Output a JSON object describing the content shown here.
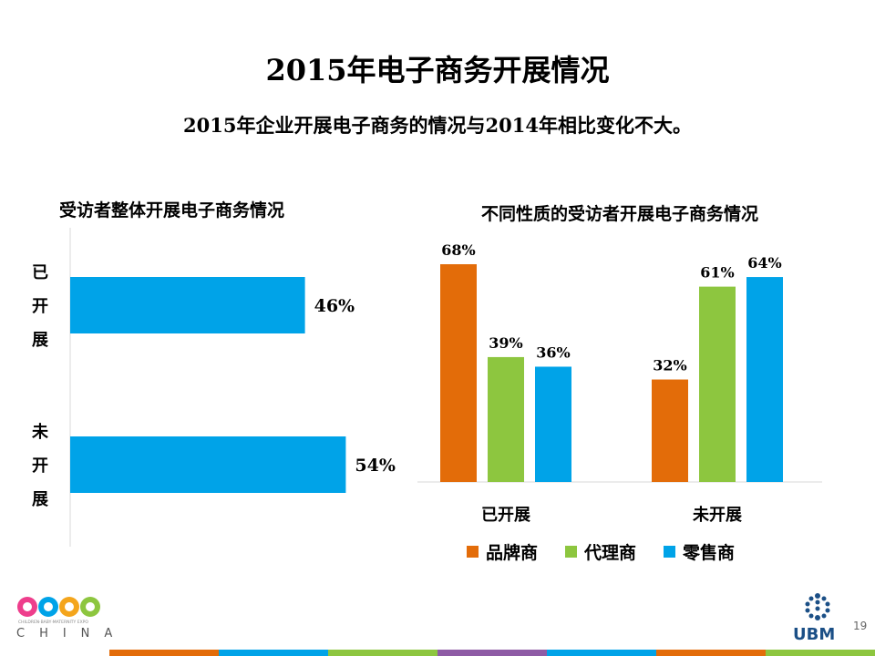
{
  "slide": {
    "title": "2015年电子商务开展情况",
    "subtitle": "2015年企业开展电子商务的情况与2014年相比变化不大。",
    "page_number": "19"
  },
  "logos": {
    "cbme_tagline": "CHILDREN·BABY·MATERNITY EXPO",
    "cbme_country": "CHINA",
    "ubm": "UBM"
  },
  "colors": {
    "orange": "#E36C09",
    "green": "#8DC63F",
    "blue": "#00A3E8"
  },
  "chart_data": [
    {
      "type": "bar",
      "orientation": "horizontal",
      "title": "受访者整体开展电子商务情况",
      "categories": [
        "已开展",
        "未开展"
      ],
      "values": [
        46,
        54
      ],
      "value_labels": [
        "46%",
        "54%"
      ],
      "xlim": [
        0,
        100
      ],
      "color": "#00A3E8",
      "grid": false
    },
    {
      "type": "bar",
      "title": "不同性质的受访者开展电子商务情况",
      "categories": [
        "已开展",
        "未开展"
      ],
      "series": [
        {
          "name": "品牌商",
          "values": [
            68,
            32
          ],
          "labels": [
            "68%",
            "32%"
          ],
          "color": "#E36C09"
        },
        {
          "name": "代理商",
          "values": [
            39,
            61
          ],
          "labels": [
            "39%",
            "61%"
          ],
          "color": "#8DC63F"
        },
        {
          "name": "零售商",
          "values": [
            36,
            64
          ],
          "labels": [
            "36%",
            "64%"
          ],
          "color": "#00A3E8"
        }
      ],
      "ylim": [
        0,
        70
      ],
      "legend": "bottom",
      "grid": false
    }
  ]
}
